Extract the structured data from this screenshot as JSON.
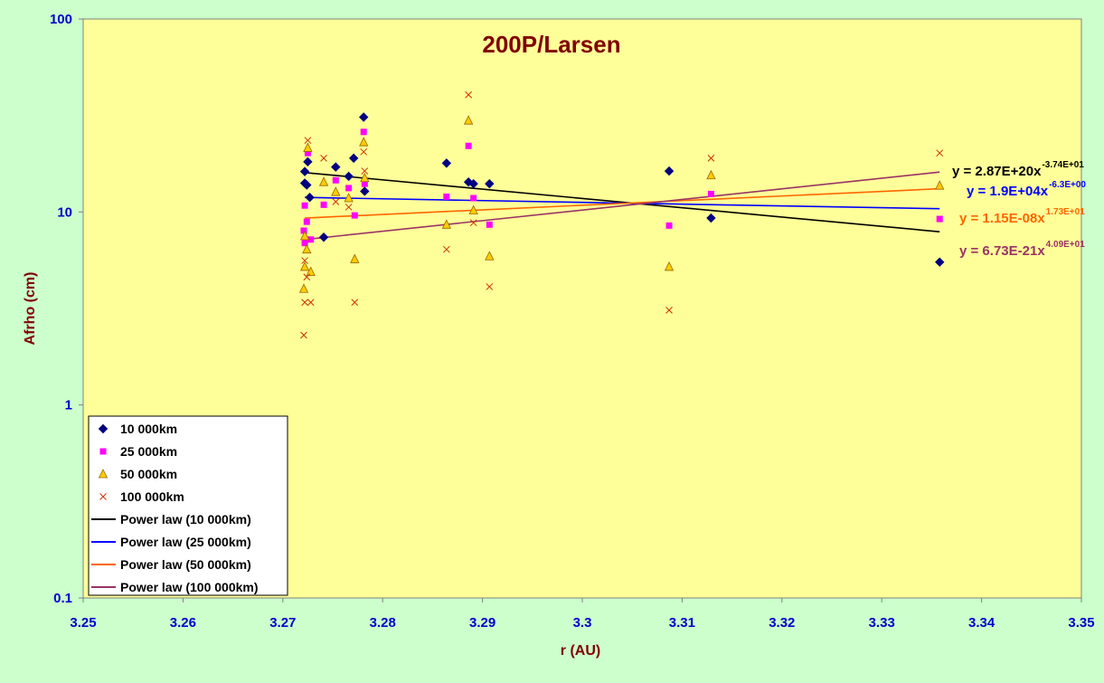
{
  "chart_data": {
    "type": "scatter",
    "title": "200P/Larsen",
    "xlabel": "r (AU)",
    "ylabel": "Afrho (cm)",
    "xlim": [
      3.25,
      3.35
    ],
    "ylim": [
      0.1,
      100
    ],
    "y_scale": "log",
    "x_ticks": [
      3.25,
      3.26,
      3.27,
      3.28,
      3.29,
      3.3,
      3.31,
      3.32,
      3.33,
      3.34,
      3.35
    ],
    "x_tick_labels": [
      "3.25",
      "3.26",
      "3.27",
      "3.28",
      "3.29",
      "3.3",
      "3.31",
      "3.32",
      "3.33",
      "3.34",
      "3.35"
    ],
    "y_ticks": [
      0.1,
      1,
      10,
      100
    ],
    "y_tick_labels": [
      "0.1",
      "1",
      "10",
      "100"
    ],
    "grid": false,
    "legend_position": "bottom-left",
    "colors": {
      "plot_background": "#ffff99",
      "page_background": "#ccffcc",
      "tick_labels": "#0000cc",
      "axis_titles": "#800000"
    },
    "series": [
      {
        "name": "10 000km",
        "marker": "diamond",
        "color": "#000080",
        "points": [
          [
            3.2722,
            16.2
          ],
          [
            3.2722,
            14.1
          ],
          [
            3.2724,
            13.8
          ],
          [
            3.2725,
            18.2
          ],
          [
            3.2727,
            11.9
          ],
          [
            3.2741,
            7.4
          ],
          [
            3.2753,
            17.1
          ],
          [
            3.2766,
            15.3
          ],
          [
            3.2771,
            19.0
          ],
          [
            3.2781,
            31.0
          ],
          [
            3.2782,
            12.8
          ],
          [
            3.2864,
            17.9
          ],
          [
            3.2886,
            14.3
          ],
          [
            3.2891,
            14.0
          ],
          [
            3.2907,
            14.0
          ],
          [
            3.3087,
            16.3
          ],
          [
            3.3129,
            9.3
          ],
          [
            3.3358,
            5.5
          ]
        ]
      },
      {
        "name": "25 000km",
        "marker": "square",
        "color": "#ff00ff",
        "points": [
          [
            3.2721,
            8.0
          ],
          [
            3.2722,
            6.9
          ],
          [
            3.2722,
            10.8
          ],
          [
            3.2724,
            8.9
          ],
          [
            3.2725,
            20.2
          ],
          [
            3.2728,
            7.2
          ],
          [
            3.2741,
            10.9
          ],
          [
            3.2753,
            14.6
          ],
          [
            3.2766,
            13.3
          ],
          [
            3.2772,
            9.6
          ],
          [
            3.2781,
            26.0
          ],
          [
            3.2782,
            14.0
          ],
          [
            3.2864,
            12.0
          ],
          [
            3.2886,
            22.0
          ],
          [
            3.2891,
            11.8
          ],
          [
            3.2907,
            8.6
          ],
          [
            3.3087,
            8.5
          ],
          [
            3.3129,
            12.4
          ],
          [
            3.3358,
            9.2
          ]
        ]
      },
      {
        "name": "50 000km",
        "marker": "triangle",
        "color": "#ffcc00",
        "points": [
          [
            3.2721,
            4.0
          ],
          [
            3.2722,
            5.2
          ],
          [
            3.2722,
            7.5
          ],
          [
            3.2724,
            6.4
          ],
          [
            3.2725,
            21.5
          ],
          [
            3.2728,
            4.9
          ],
          [
            3.2741,
            14.3
          ],
          [
            3.2753,
            12.7
          ],
          [
            3.2766,
            11.8
          ],
          [
            3.2772,
            5.7
          ],
          [
            3.2781,
            23.0
          ],
          [
            3.2782,
            15.0
          ],
          [
            3.2864,
            8.6
          ],
          [
            3.2886,
            29.8
          ],
          [
            3.2891,
            10.2
          ],
          [
            3.2907,
            5.9
          ],
          [
            3.3087,
            5.2
          ],
          [
            3.3129,
            15.5
          ],
          [
            3.3358,
            13.7
          ]
        ]
      },
      {
        "name": "100 000km",
        "marker": "x",
        "color": "#cc3300",
        "points": [
          [
            3.2721,
            2.3
          ],
          [
            3.2722,
            3.4
          ],
          [
            3.2722,
            5.6
          ],
          [
            3.2724,
            4.6
          ],
          [
            3.2725,
            23.5
          ],
          [
            3.2728,
            3.4
          ],
          [
            3.2741,
            19.0
          ],
          [
            3.2753,
            11.3
          ],
          [
            3.2766,
            10.6
          ],
          [
            3.2772,
            3.4
          ],
          [
            3.2781,
            20.5
          ],
          [
            3.2782,
            16.3
          ],
          [
            3.2864,
            6.4
          ],
          [
            3.2886,
            40.5
          ],
          [
            3.2891,
            8.8
          ],
          [
            3.2907,
            4.1
          ],
          [
            3.3087,
            3.1
          ],
          [
            3.3129,
            19.0
          ],
          [
            3.3358,
            20.2
          ]
        ]
      }
    ],
    "trendlines": [
      {
        "name": "Power law (10 000km)",
        "color": "#000000",
        "label_color": "#000000",
        "coefficient": "y = 2.87E+20x",
        "exponent": "-3.74E+01",
        "x_range": [
          3.2722,
          3.3358
        ],
        "y_range": [
          16.0,
          7.9
        ]
      },
      {
        "name": "Power law (25 000km)",
        "color": "#0000ff",
        "label_color": "#0000ff",
        "coefficient": "y = 1.9E+04x",
        "exponent": "-6.3E+00",
        "x_range": [
          3.2722,
          3.3358
        ],
        "y_range": [
          11.9,
          10.4
        ]
      },
      {
        "name": "Power law (50 000km)",
        "color": "#ff6600",
        "label_color": "#ff6600",
        "coefficient": "y = 1.15E-08x",
        "exponent": "1.73E+01",
        "x_range": [
          3.2722,
          3.3358
        ],
        "y_range": [
          9.3,
          13.2
        ]
      },
      {
        "name": "Power law (100 000km)",
        "color": "#993366",
        "label_color": "#993366",
        "coefficient": "y = 6.73E-21x",
        "exponent": "4.09E+01",
        "x_range": [
          3.2722,
          3.3358
        ],
        "y_range": [
          7.2,
          16.1
        ]
      }
    ]
  }
}
